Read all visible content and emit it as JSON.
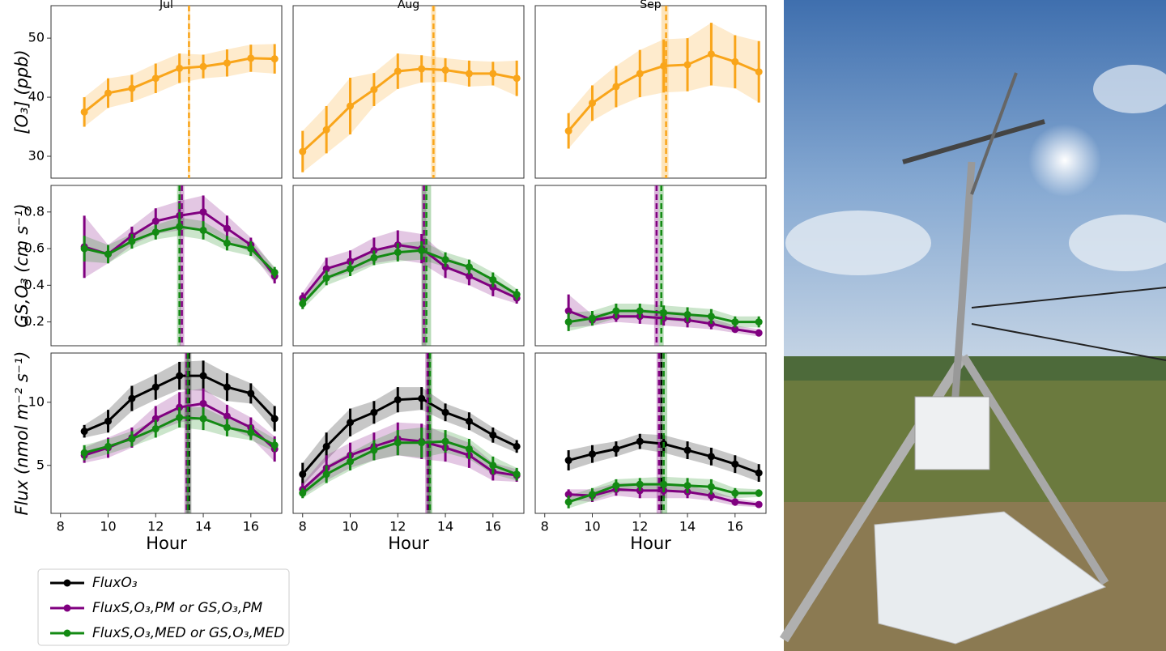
{
  "chart_data": [
    {
      "type": "line",
      "title": "Jul",
      "ylabel": "[O₃] (ppb)",
      "x": [
        9,
        10,
        11,
        12,
        13,
        14,
        15,
        16,
        17
      ],
      "xlim": [
        7.6,
        17.3
      ],
      "ylim": [
        26.3,
        55.5
      ],
      "yticks": [
        30,
        40,
        50
      ],
      "series": [
        {
          "color": "#f9a51a",
          "values": [
            37.5,
            40.7,
            41.5,
            43.2,
            44.9,
            45.2,
            45.8,
            46.6,
            46.5
          ],
          "errors": [
            2.5,
            2.5,
            2.3,
            2.5,
            2.5,
            2,
            2.3,
            2.3,
            2.5
          ],
          "peak": 13.4,
          "peak_band": [
            13.35,
            13.45
          ]
        }
      ]
    },
    {
      "type": "line",
      "title": "Aug",
      "x": [
        8,
        9,
        10,
        11,
        12,
        13,
        14,
        15,
        16,
        17
      ],
      "xlim": [
        7.6,
        17.3
      ],
      "ylim": [
        26.3,
        55.5
      ],
      "series": [
        {
          "color": "#f9a51a",
          "values": [
            30.8,
            34.5,
            38.5,
            41.3,
            44.4,
            44.8,
            44.6,
            44,
            44,
            43.2
          ],
          "errors": [
            3.5,
            4,
            4.8,
            2.8,
            3,
            2.3,
            2,
            2.2,
            2,
            3
          ],
          "peak": 13.5,
          "peak_band": [
            13.4,
            13.6
          ]
        }
      ]
    },
    {
      "type": "line",
      "title": "Sep",
      "x": [
        9,
        10,
        11,
        12,
        13,
        14,
        15,
        16,
        17
      ],
      "xlim": [
        7.6,
        17.3
      ],
      "ylim": [
        26.3,
        55.5
      ],
      "series": [
        {
          "color": "#f9a51a",
          "values": [
            34.3,
            39,
            41.8,
            44,
            45.3,
            45.5,
            47.3,
            46,
            44.3
          ],
          "errors": [
            3,
            3,
            3.5,
            4,
            4.5,
            4.5,
            5.3,
            4.5,
            5.2
          ],
          "peak": 13.1,
          "peak_band": [
            12.9,
            13.2
          ]
        }
      ]
    },
    {
      "type": "line",
      "ylabel": "GS,O₃ (cm s⁻¹)",
      "x": [
        9,
        10,
        11,
        12,
        13,
        14,
        15,
        16,
        17
      ],
      "xlim": [
        7.6,
        17.3
      ],
      "ylim": [
        0.07,
        0.945
      ],
      "yticks": [
        0.2,
        0.4,
        0.6,
        0.8
      ],
      "series": [
        {
          "color": "#800080",
          "values": [
            0.61,
            0.57,
            0.67,
            0.75,
            0.78,
            0.8,
            0.71,
            0.62,
            0.45
          ],
          "errors": [
            0.17,
            0.05,
            0.05,
            0.07,
            0.08,
            0.09,
            0.07,
            0.04,
            0.04
          ],
          "peak": 13.1,
          "peak_band": [
            13.0,
            13.2
          ]
        },
        {
          "color": "#138a13",
          "values": [
            0.6,
            0.57,
            0.64,
            0.69,
            0.72,
            0.7,
            0.63,
            0.6,
            0.47
          ],
          "errors": [
            0.07,
            0.05,
            0.04,
            0.04,
            0.05,
            0.05,
            0.04,
            0.04,
            0.03
          ],
          "peak": 13.0,
          "peak_band": [
            12.9,
            13.05
          ]
        }
      ]
    },
    {
      "type": "line",
      "x": [
        8,
        9,
        10,
        11,
        12,
        13,
        14,
        15,
        16,
        17
      ],
      "xlim": [
        7.6,
        17.3
      ],
      "ylim": [
        0.07,
        0.945
      ],
      "series": [
        {
          "color": "#800080",
          "values": [
            0.33,
            0.49,
            0.53,
            0.59,
            0.62,
            0.6,
            0.5,
            0.45,
            0.39,
            0.33
          ],
          "errors": [
            0.03,
            0.06,
            0.06,
            0.07,
            0.08,
            0.08,
            0.06,
            0.05,
            0.05,
            0.03
          ],
          "peak": 13.1,
          "peak_band": [
            13.0,
            13.2
          ]
        },
        {
          "color": "#138a13",
          "values": [
            0.3,
            0.44,
            0.49,
            0.55,
            0.58,
            0.59,
            0.54,
            0.5,
            0.43,
            0.35
          ],
          "errors": [
            0.03,
            0.04,
            0.04,
            0.04,
            0.05,
            0.05,
            0.04,
            0.04,
            0.04,
            0.03
          ],
          "peak": 13.2,
          "peak_band": [
            13.0,
            13.4
          ]
        }
      ]
    },
    {
      "type": "line",
      "x": [
        9,
        10,
        11,
        12,
        13,
        14,
        15,
        16,
        17
      ],
      "xlim": [
        7.6,
        17.3
      ],
      "ylim": [
        0.07,
        0.945
      ],
      "series": [
        {
          "color": "#800080",
          "values": [
            0.26,
            0.21,
            0.23,
            0.23,
            0.22,
            0.21,
            0.19,
            0.16,
            0.14
          ],
          "errors": [
            0.09,
            0.03,
            0.03,
            0.04,
            0.04,
            0.04,
            0.03,
            0.02,
            0.02
          ],
          "peak": 12.7,
          "peak_band": [
            12.6,
            12.8
          ]
        },
        {
          "color": "#138a13",
          "values": [
            0.2,
            0.22,
            0.26,
            0.26,
            0.25,
            0.24,
            0.23,
            0.2,
            0.2
          ],
          "errors": [
            0.05,
            0.04,
            0.04,
            0.04,
            0.04,
            0.04,
            0.04,
            0.03,
            0.03
          ],
          "peak": 12.9,
          "peak_band": [
            12.8,
            13.0
          ]
        }
      ]
    },
    {
      "type": "line",
      "ylabel": "Flux (nmol m⁻² s⁻¹)",
      "xlabel": "Hour",
      "x": [
        9,
        10,
        11,
        12,
        13,
        14,
        15,
        16,
        17
      ],
      "xlim": [
        7.6,
        17.3
      ],
      "xticks": [
        8,
        10,
        12,
        14,
        16
      ],
      "ylim": [
        1.2,
        13.9
      ],
      "yticks": [
        5,
        10
      ],
      "series": [
        {
          "name": "FluxO₃",
          "color": "#000000",
          "values": [
            7.7,
            8.5,
            10.3,
            11.2,
            12.1,
            12.1,
            11.2,
            10.7,
            8.7
          ],
          "errors": [
            0.5,
            0.9,
            1,
            1,
            1.1,
            1.2,
            1.1,
            0.8,
            1
          ],
          "peak": 13.4,
          "peak_band": [
            13.3,
            13.5
          ]
        },
        {
          "name": "FluxS,O₃,PM or GS,O₃,PM",
          "color": "#800080",
          "values": [
            5.8,
            6.4,
            7.2,
            8.7,
            9.6,
            9.9,
            8.9,
            8,
            6.3
          ],
          "errors": [
            0.6,
            0.8,
            0.8,
            1,
            1.2,
            1.2,
            0.9,
            0.8,
            1
          ],
          "peak": 13.3,
          "peak_band": [
            13.2,
            13.4
          ]
        },
        {
          "name": "FluxS,O₃,MED or GS,O₃,MED",
          "color": "#138a13",
          "values": [
            6,
            6.5,
            7.1,
            7.9,
            8.8,
            8.7,
            8,
            7.6,
            6.6
          ],
          "errors": [
            0.6,
            0.6,
            0.6,
            0.7,
            0.8,
            0.9,
            0.7,
            0.6,
            0.5
          ],
          "peak": 13.35,
          "peak_band": [
            13.25,
            13.45
          ]
        }
      ]
    },
    {
      "type": "line",
      "xlabel": "Hour",
      "x": [
        8,
        9,
        10,
        11,
        12,
        13,
        14,
        15,
        16,
        17
      ],
      "xlim": [
        7.6,
        17.3
      ],
      "xticks": [
        8,
        10,
        12,
        14,
        16
      ],
      "ylim": [
        1.2,
        13.9
      ],
      "series": [
        {
          "color": "#000000",
          "values": [
            4.3,
            6.5,
            8.4,
            9.2,
            10.2,
            10.3,
            9.2,
            8.5,
            7.4,
            6.5
          ],
          "errors": [
            0.9,
            1.1,
            1.1,
            0.9,
            1,
            0.9,
            0.7,
            0.7,
            0.6,
            0.5
          ],
          "peak": 13.3,
          "peak_band": [
            13.2,
            13.4
          ]
        },
        {
          "color": "#800080",
          "values": [
            3.1,
            4.8,
            5.8,
            6.5,
            7.1,
            6.9,
            6.4,
            5.8,
            4.5,
            4.2
          ],
          "errors": [
            0.5,
            1,
            1,
            1.1,
            1.3,
            1.4,
            1.1,
            1,
            0.7,
            0.5
          ],
          "peak": 13.25,
          "peak_band": [
            13.15,
            13.35
          ]
        },
        {
          "color": "#138a13",
          "values": [
            2.8,
            4.3,
            5.3,
            6.2,
            6.8,
            6.8,
            6.9,
            6.3,
            5,
            4.3
          ],
          "errors": [
            0.4,
            0.7,
            0.7,
            0.8,
            1,
            1.2,
            0.9,
            0.8,
            0.7,
            0.5
          ],
          "peak": 13.35,
          "peak_band": [
            13.25,
            13.45
          ]
        }
      ]
    },
    {
      "type": "line",
      "xlabel": "Hour",
      "x": [
        9,
        10,
        11,
        12,
        13,
        14,
        15,
        16,
        17
      ],
      "xlim": [
        7.6,
        17.3
      ],
      "xticks": [
        8,
        10,
        12,
        14,
        16
      ],
      "ylim": [
        1.2,
        13.9
      ],
      "series": [
        {
          "color": "#000000",
          "values": [
            5.4,
            5.9,
            6.3,
            6.9,
            6.7,
            6.2,
            5.7,
            5.1,
            4.4
          ],
          "errors": [
            0.8,
            0.7,
            0.6,
            0.6,
            0.7,
            0.7,
            0.7,
            0.7,
            0.7
          ],
          "peak": 12.9,
          "peak_band": [
            12.85,
            12.95
          ]
        },
        {
          "color": "#800080",
          "values": [
            2.7,
            2.6,
            3.1,
            3,
            3,
            2.9,
            2.6,
            2.1,
            1.9
          ],
          "errors": [
            0.4,
            0.5,
            0.5,
            0.6,
            0.6,
            0.5,
            0.4,
            0.3,
            0.2
          ],
          "peak": 12.8,
          "peak_band": [
            12.7,
            12.9
          ]
        },
        {
          "color": "#138a13",
          "values": [
            2.1,
            2.7,
            3.4,
            3.5,
            3.5,
            3.4,
            3.3,
            2.8,
            2.8
          ],
          "errors": [
            0.5,
            0.5,
            0.5,
            0.5,
            0.6,
            0.6,
            0.6,
            0.4,
            0.3
          ],
          "peak": 13.0,
          "peak_band": [
            12.9,
            13.15
          ]
        }
      ]
    }
  ]
}
